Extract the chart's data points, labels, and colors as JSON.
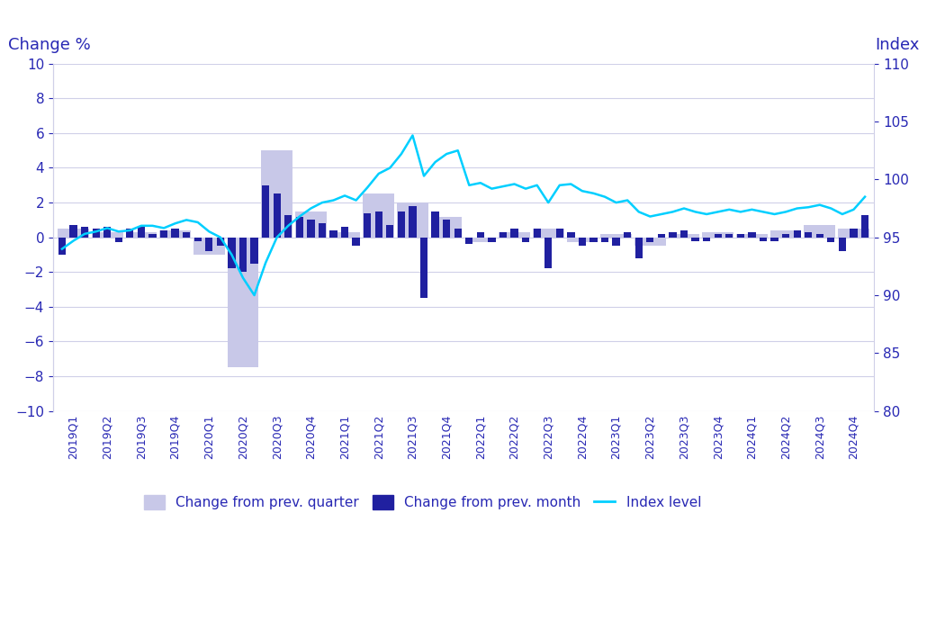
{
  "quarters": [
    "2019Q1",
    "2019Q2",
    "2019Q3",
    "2019Q4",
    "2020Q1",
    "2020Q2",
    "2020Q3",
    "2020Q4",
    "2021Q1",
    "2021Q2",
    "2021Q3",
    "2021Q4",
    "2022Q1",
    "2022Q2",
    "2022Q3",
    "2022Q4",
    "2023Q1",
    "2023Q2",
    "2023Q3",
    "2023Q4",
    "2024Q1",
    "2024Q2",
    "2024Q3",
    "2024Q4"
  ],
  "quarter_change": [
    0.5,
    0.3,
    0.3,
    0.4,
    -1.0,
    -7.5,
    5.0,
    1.5,
    0.3,
    2.5,
    2.0,
    1.2,
    -0.3,
    0.3,
    0.5,
    -0.3,
    0.2,
    -0.5,
    0.2,
    0.3,
    0.2,
    0.4,
    0.7,
    0.5
  ],
  "month_change": [
    -1.0,
    0.7,
    0.6,
    0.5,
    0.6,
    -0.3,
    0.5,
    0.6,
    0.2,
    0.4,
    0.5,
    0.3,
    -0.2,
    -0.8,
    -0.5,
    -1.8,
    -2.0,
    -1.5,
    3.0,
    2.5,
    1.3,
    1.2,
    1.0,
    0.8,
    0.4,
    0.6,
    -0.5,
    1.4,
    1.5,
    0.7,
    1.5,
    1.8,
    -3.5,
    1.5,
    1.0,
    0.5,
    -0.4,
    0.3,
    -0.3,
    0.3,
    0.5,
    -0.3,
    0.5,
    -1.8,
    0.5,
    0.3,
    -0.5,
    -0.3,
    -0.3,
    -0.5,
    0.3,
    -1.2,
    -0.3,
    0.2,
    0.3,
    0.4,
    -0.2,
    -0.2,
    0.2,
    0.2,
    0.2,
    0.3,
    -0.2,
    -0.2,
    0.2,
    0.4,
    0.3,
    0.2,
    -0.3,
    -0.8,
    0.5,
    1.3
  ],
  "index_level": [
    94.0,
    94.7,
    95.3,
    95.5,
    95.8,
    95.5,
    95.6,
    96.0,
    96.0,
    95.8,
    96.2,
    96.5,
    96.3,
    95.5,
    95.0,
    93.5,
    91.5,
    90.0,
    92.8,
    95.0,
    96.0,
    96.8,
    97.5,
    98.0,
    98.2,
    98.6,
    98.2,
    99.3,
    100.5,
    101.0,
    102.2,
    103.8,
    100.3,
    101.5,
    102.2,
    102.5,
    99.5,
    99.7,
    99.2,
    99.4,
    99.6,
    99.2,
    99.5,
    98.0,
    99.5,
    99.6,
    99.0,
    98.8,
    98.5,
    98.0,
    98.2,
    97.2,
    96.8,
    97.0,
    97.2,
    97.5,
    97.2,
    97.0,
    97.2,
    97.4,
    97.2,
    97.4,
    97.2,
    97.0,
    97.2,
    97.5,
    97.6,
    97.8,
    97.5,
    97.0,
    97.4,
    98.5
  ],
  "ylabel_left": "Change %",
  "ylabel_right": "Index",
  "ylim_left": [
    -10,
    10
  ],
  "ylim_right": [
    80,
    110
  ],
  "yticks_left": [
    -10,
    -8,
    -6,
    -4,
    -2,
    0,
    2,
    4,
    6,
    8,
    10
  ],
  "yticks_right": [
    80,
    85,
    90,
    95,
    100,
    105,
    110
  ],
  "bar_color_quarter": "#c8c8e8",
  "bar_color_month": "#2020a0",
  "line_color": "#00cfff",
  "text_color": "#2828b4",
  "grid_color": "#d0d0e8",
  "background_color": "#ffffff",
  "legend_labels": [
    "Change from prev. quarter",
    "Change from prev. month",
    "Index level"
  ]
}
